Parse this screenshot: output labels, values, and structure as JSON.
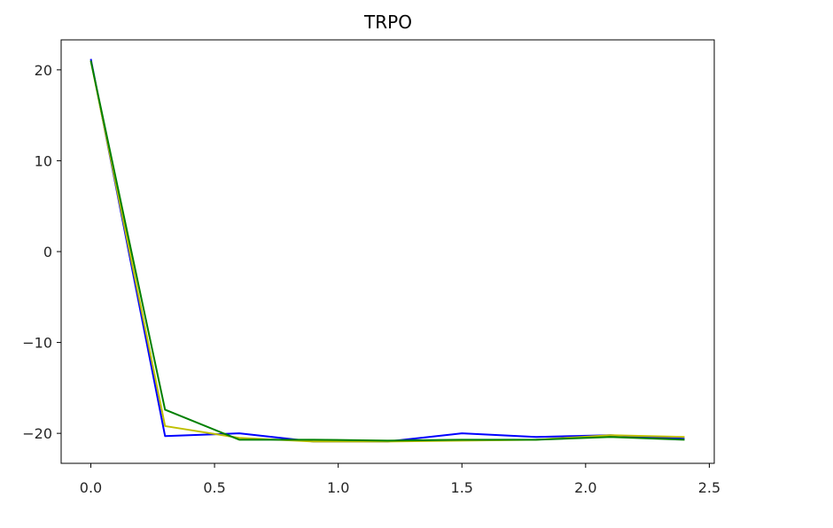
{
  "chart_data": {
    "type": "line",
    "title": "TRPO",
    "xlabel": "",
    "ylabel": "",
    "xlim": [
      -0.12,
      2.52
    ],
    "ylim": [
      -23.3,
      23.3
    ],
    "xticks": [
      0.0,
      0.5,
      1.0,
      1.5,
      2.0,
      2.5
    ],
    "xtick_labels": [
      "0.0",
      "0.5",
      "1.0",
      "1.5",
      "2.0",
      "2.5"
    ],
    "yticks": [
      20,
      10,
      0,
      -10,
      -20
    ],
    "ytick_labels": [
      "20",
      "10",
      "0",
      "−10",
      "−20"
    ],
    "grid": false,
    "legend": null,
    "x": [
      0.0,
      0.3,
      0.6,
      0.9,
      1.2,
      1.5,
      1.8,
      2.1,
      2.4
    ],
    "series": [
      {
        "color": "#0000ff",
        "values": [
          21.2,
          -20.3,
          -20.0,
          -20.9,
          -20.9,
          -20.0,
          -20.4,
          -20.2,
          -20.6
        ]
      },
      {
        "color": "#bfbf00",
        "values": [
          21.0,
          -19.2,
          -20.5,
          -20.9,
          -20.9,
          -20.8,
          -20.7,
          -20.2,
          -20.4
        ]
      },
      {
        "color": "#008000",
        "values": [
          21.0,
          -17.4,
          -20.7,
          -20.7,
          -20.8,
          -20.7,
          -20.7,
          -20.4,
          -20.7
        ]
      }
    ]
  }
}
